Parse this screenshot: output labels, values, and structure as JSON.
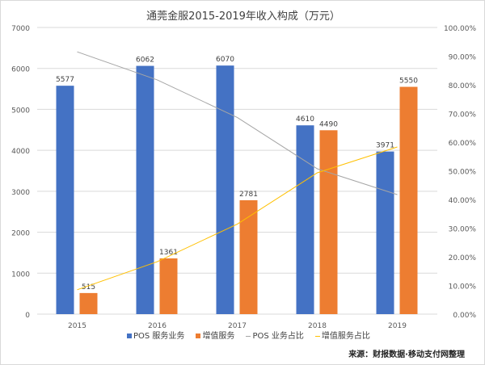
{
  "chart_data": {
    "type": "bar+line",
    "title": "通莞金服2015-2019年收入构成（万元）",
    "categories": [
      "2015",
      "2016",
      "2017",
      "2018",
      "2019"
    ],
    "bar_series": [
      {
        "name": "POS 服务业务",
        "values": [
          5577,
          6062,
          6070,
          4610,
          3971
        ],
        "color": "#4472C4"
      },
      {
        "name": "增值服务",
        "values": [
          515,
          1361,
          2781,
          4490,
          5550
        ],
        "color": "#ED7D31"
      }
    ],
    "line_series": [
      {
        "name": "POS 业务占比",
        "values": [
          91.5,
          81.7,
          68.6,
          50.7,
          41.7
        ],
        "color": "#A5A5A5"
      },
      {
        "name": "增值服务占比",
        "values": [
          8.5,
          18.3,
          31.4,
          49.3,
          58.3
        ],
        "color": "#FFC000"
      }
    ],
    "ylim": [
      0,
      7000
    ],
    "yticks": [
      "0",
      "1000",
      "2000",
      "3000",
      "4000",
      "5000",
      "6000",
      "7000"
    ],
    "y2lim": [
      0,
      100
    ],
    "y2ticks": [
      "0.00%",
      "10.00%",
      "20.00%",
      "30.00%",
      "40.00%",
      "50.00%",
      "60.00%",
      "70.00%",
      "80.00%",
      "90.00%",
      "100.00%"
    ],
    "grid": true,
    "legend": "bottom"
  },
  "source": "来源：财报数据·移动支付网整理",
  "watermark": "移动支付网"
}
